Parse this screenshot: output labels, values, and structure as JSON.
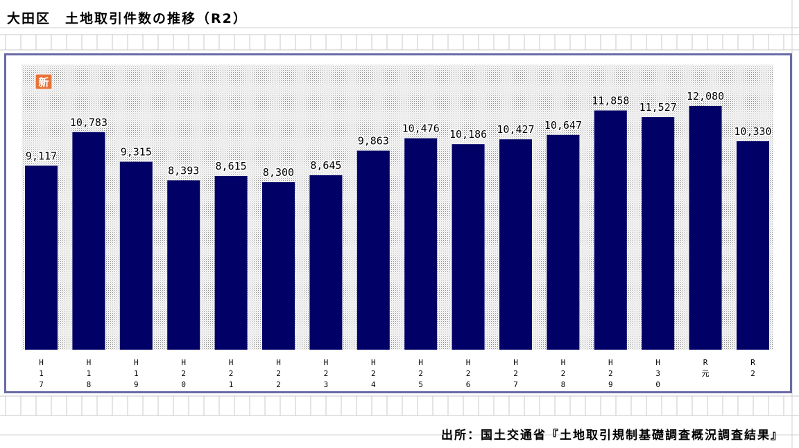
{
  "title": "大田区　土地取引件数の推移（R2）",
  "badge": "新",
  "source": "出所：国土交通省『土地取引規制基礎調査概況調査結果』",
  "colors": {
    "bar": "#000066",
    "frame": "#6a6aa6",
    "badge": "#e8733a",
    "plot_dots": "#9a9a9a"
  },
  "chart_data": {
    "type": "bar",
    "categories": [
      [
        "H",
        "1",
        "7"
      ],
      [
        "H",
        "1",
        "8"
      ],
      [
        "H",
        "1",
        "9"
      ],
      [
        "H",
        "2",
        "0"
      ],
      [
        "H",
        "2",
        "1"
      ],
      [
        "H",
        "2",
        "2"
      ],
      [
        "H",
        "2",
        "3"
      ],
      [
        "H",
        "2",
        "4"
      ],
      [
        "H",
        "2",
        "5"
      ],
      [
        "H",
        "2",
        "6"
      ],
      [
        "H",
        "2",
        "7"
      ],
      [
        "H",
        "2",
        "8"
      ],
      [
        "H",
        "2",
        "9"
      ],
      [
        "H",
        "3",
        "0"
      ],
      [
        "R",
        "元"
      ],
      [
        "R",
        "2"
      ]
    ],
    "values": [
      9117,
      10783,
      9315,
      8393,
      8615,
      8300,
      8645,
      9863,
      10476,
      10186,
      10427,
      10647,
      11858,
      11527,
      12080,
      10330
    ],
    "labels": [
      "9,117",
      "10,783",
      "9,315",
      "8,393",
      "8,615",
      "8,300",
      "8,645",
      "9,863",
      "10,476",
      "10,186",
      "10,427",
      "10,647",
      "11,858",
      "11,527",
      "12,080",
      "10,330"
    ],
    "grid": false,
    "legend": "none"
  }
}
